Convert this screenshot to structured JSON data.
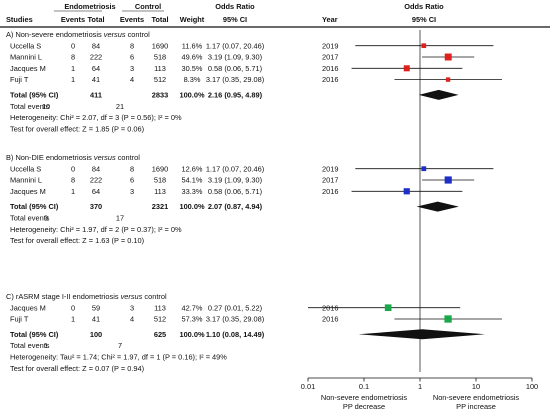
{
  "header": {
    "group1": "Endometriosis",
    "group2": "Control",
    "studies": "Studies",
    "events1": "Events",
    "total1": "Total",
    "events2": "Events",
    "total2": "Total",
    "weight": "Weight",
    "or_title": "Odds Ratio",
    "or_ci": "95% CI",
    "year": "Year",
    "plot_title": "Odds Ratio",
    "plot_ci": "95% CI"
  },
  "sections": [
    {
      "title_pre": "A) Non-severe endometriosis ",
      "title_it": "versus",
      "title_post": " control",
      "color": "#e0201f",
      "studies": [
        {
          "name": "Uccella S",
          "e1": "0",
          "t1": "84",
          "e2": "8",
          "t2": "1690",
          "w": "11.6%",
          "or": "1.17 (0.07, 20.46)",
          "year": "2019",
          "est": 1.17,
          "lo": 0.07,
          "hi": 20.46,
          "weight": 11.6
        },
        {
          "name": "Mannini L",
          "e1": "8",
          "t1": "222",
          "e2": "6",
          "t2": "518",
          "w": "49.6%",
          "or": "3.19 (1.09, 9.30)",
          "year": "2017",
          "est": 3.19,
          "lo": 1.09,
          "hi": 9.3,
          "weight": 49.6
        },
        {
          "name": "Jacques M",
          "e1": "1",
          "t1": "64",
          "e2": "3",
          "t2": "113",
          "w": "30.5%",
          "or": "0.58 (0.06, 5.71)",
          "year": "2016",
          "est": 0.58,
          "lo": 0.06,
          "hi": 5.71,
          "weight": 30.5
        },
        {
          "name": "Fuji T",
          "e1": "1",
          "t1": "41",
          "e2": "4",
          "t2": "512",
          "w": "8.3%",
          "or": "3.17 (0.35, 29.08)",
          "year": "2016",
          "est": 3.17,
          "lo": 0.35,
          "hi": 29.08,
          "weight": 8.3
        }
      ],
      "total": {
        "label": "Total (95% CI)",
        "t1": "411",
        "t2": "2833",
        "w": "100.0%",
        "or": "2.16 (0.95, 4.89)",
        "est": 2.16,
        "lo": 0.95,
        "hi": 4.89
      },
      "events": {
        "label": "Total events",
        "e1": "10",
        "e2": "21"
      },
      "het": "Heterogeneity: Chi² = 2.07, df = 3 (P = 0.56); I² = 0%",
      "test": "Test for overall effect: Z = 1.85 (P = 0.06)"
    },
    {
      "title_pre": "B) Non-DIE endometriosis ",
      "title_it": "versus",
      "title_post": " control",
      "color": "#1e2fc8",
      "studies": [
        {
          "name": "Uccella S",
          "e1": "0",
          "t1": "84",
          "e2": "8",
          "t2": "1690",
          "w": "12.6%",
          "or": "1.17 (0.07, 20.46)",
          "year": "2019",
          "est": 1.17,
          "lo": 0.07,
          "hi": 20.46,
          "weight": 12.6
        },
        {
          "name": "Mannini L",
          "e1": "8",
          "t1": "222",
          "e2": "6",
          "t2": "518",
          "w": "54.1%",
          "or": "3.19 (1.09, 9.30)",
          "year": "2017",
          "est": 3.19,
          "lo": 1.09,
          "hi": 9.3,
          "weight": 54.1
        },
        {
          "name": "Jacques M",
          "e1": "1",
          "t1": "64",
          "e2": "3",
          "t2": "113",
          "w": "33.3%",
          "or": "0.58 (0.06, 5.71)",
          "year": "2016",
          "est": 0.58,
          "lo": 0.06,
          "hi": 5.71,
          "weight": 33.3
        }
      ],
      "total": {
        "label": "Total (95% CI)",
        "t1": "370",
        "t2": "2321",
        "w": "100.0%",
        "or": "2.07 (0.87, 4.94)",
        "est": 2.07,
        "lo": 0.87,
        "hi": 4.94
      },
      "events": {
        "label": "Total events",
        "e1": "9",
        "e2": "17"
      },
      "het": "Heterogeneity: Chi² = 1.97, df = 2 (P = 0.37); I² = 0%",
      "test": "Test for overall effect: Z = 1.63 (P = 0.10)"
    },
    {
      "title_pre": "C) rASRM stage I-II endometriosis ",
      "title_it": "versus",
      "title_post": " control",
      "color": "#1aa84a",
      "studies": [
        {
          "name": "Jacques M",
          "e1": "0",
          "t1": "59",
          "e2": "3",
          "t2": "113",
          "w": "42.7%",
          "or": "0.27 (0.01, 5.22)",
          "year": "2016",
          "est": 0.27,
          "lo": 0.01,
          "hi": 5.22,
          "weight": 42.7
        },
        {
          "name": "Fuji T",
          "e1": "1",
          "t1": "41",
          "e2": "4",
          "t2": "512",
          "w": "57.3%",
          "or": "3.17 (0.35, 29.08)",
          "year": "2016",
          "est": 3.17,
          "lo": 0.35,
          "hi": 29.08,
          "weight": 57.3
        }
      ],
      "total": {
        "label": "Total (95% CI)",
        "t1": "100",
        "t2": "625",
        "w": "100.0%",
        "or": "1.10 (0.08, 14.49)",
        "est": 1.1,
        "lo": 0.08,
        "hi": 14.49
      },
      "events": {
        "label": "Total events",
        "e1": "1",
        "e2": "7"
      },
      "het": "Heterogeneity: Tau² = 1.74; Chi² = 1.97, df = 1 (P = 0.16); I² = 49%",
      "test": "Test for overall effect: Z = 0.07 (P = 0.94)"
    }
  ],
  "axis": {
    "ticks": [
      {
        "value": 0.01,
        "label": "0.01"
      },
      {
        "value": 0.1,
        "label": "0.1"
      },
      {
        "value": 1,
        "label": "1"
      },
      {
        "value": 10,
        "label": "10"
      },
      {
        "value": 100,
        "label": "100"
      }
    ],
    "left_label_1": "Non-severe endometriosis",
    "left_label_2": "PP decrease",
    "right_label_1": "Non-severe endometriosis",
    "right_label_2": "PP increase"
  },
  "chart_data": {
    "type": "forest",
    "title": "Odds Ratio",
    "xlabel": "95% CI",
    "scale": "log",
    "xlim": [
      0.01,
      100
    ],
    "reference_line": 1,
    "grid": false,
    "series": [
      {
        "name": "A) Non-severe endometriosis versus control",
        "color": "#e0201f",
        "points": [
          {
            "study": "Uccella S",
            "or": 1.17,
            "lo": 0.07,
            "hi": 20.46,
            "weight": 11.6
          },
          {
            "study": "Mannini L",
            "or": 3.19,
            "lo": 1.09,
            "hi": 9.3,
            "weight": 49.6
          },
          {
            "study": "Jacques M",
            "or": 0.58,
            "lo": 0.06,
            "hi": 5.71,
            "weight": 30.5
          },
          {
            "study": "Fuji T",
            "or": 3.17,
            "lo": 0.35,
            "hi": 29.08,
            "weight": 8.3
          }
        ],
        "pooled": {
          "or": 2.16,
          "lo": 0.95,
          "hi": 4.89
        }
      },
      {
        "name": "B) Non-DIE endometriosis versus control",
        "color": "#1e2fc8",
        "points": [
          {
            "study": "Uccella S",
            "or": 1.17,
            "lo": 0.07,
            "hi": 20.46,
            "weight": 12.6
          },
          {
            "study": "Mannini L",
            "or": 3.19,
            "lo": 1.09,
            "hi": 9.3,
            "weight": 54.1
          },
          {
            "study": "Jacques M",
            "or": 0.58,
            "lo": 0.06,
            "hi": 5.71,
            "weight": 33.3
          }
        ],
        "pooled": {
          "or": 2.07,
          "lo": 0.87,
          "hi": 4.94
        }
      },
      {
        "name": "C) rASRM stage I-II endometriosis versus control",
        "color": "#1aa84a",
        "points": [
          {
            "study": "Jacques M",
            "or": 0.27,
            "lo": 0.01,
            "hi": 5.22,
            "weight": 42.7
          },
          {
            "study": "Fuji T",
            "or": 3.17,
            "lo": 0.35,
            "hi": 29.08,
            "weight": 57.3
          }
        ],
        "pooled": {
          "or": 1.1,
          "lo": 0.08,
          "hi": 14.49
        }
      }
    ]
  }
}
